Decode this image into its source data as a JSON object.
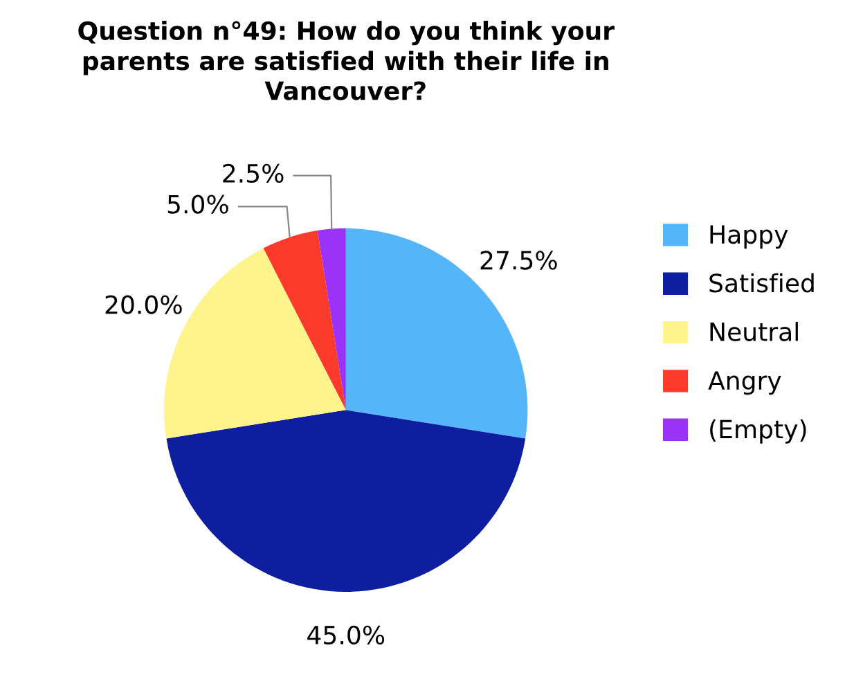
{
  "chart_data": {
    "type": "pie",
    "title": "Question n°49: How do you think your parents are satisfied with their life in Vancouver?",
    "categories": [
      "Happy",
      "Satisfied",
      "Neutral",
      "Angry",
      "(Empty)"
    ],
    "values": [
      27.5,
      45.0,
      20.0,
      5.0,
      2.5
    ],
    "colors": [
      "#55b5fb",
      "#0d1e9e",
      "#fff48c",
      "#fc3a2c",
      "#9a33f7"
    ],
    "value_labels": [
      "27.5%",
      "45.0%",
      "20.0%",
      "5.0%",
      "2.5%"
    ],
    "legend": "right"
  }
}
